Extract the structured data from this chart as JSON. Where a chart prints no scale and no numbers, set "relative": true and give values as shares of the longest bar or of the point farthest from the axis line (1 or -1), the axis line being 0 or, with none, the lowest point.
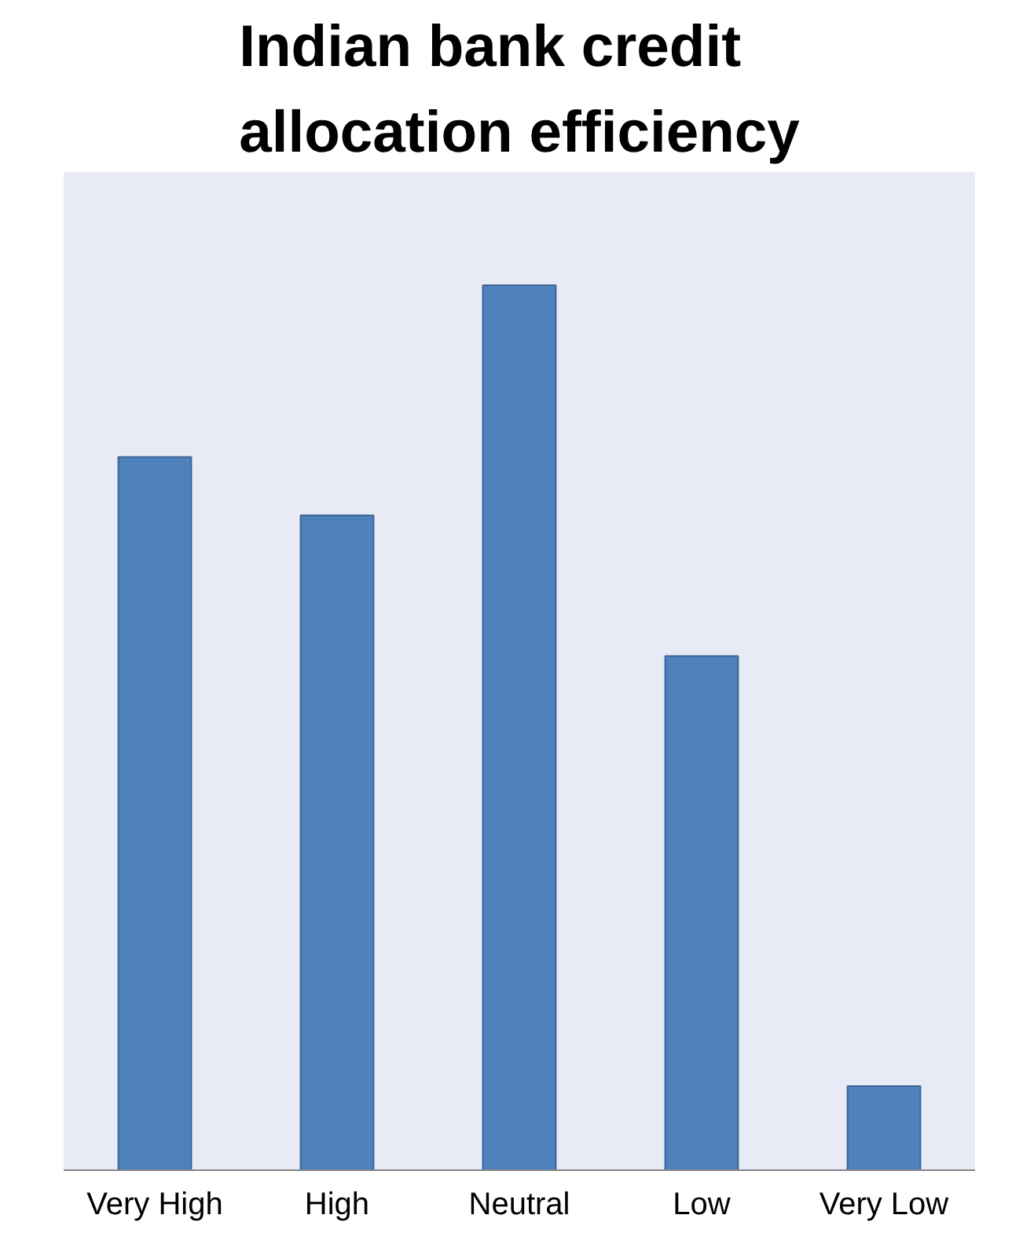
{
  "chart_data": {
    "type": "bar",
    "title": "Indian bank credit allocation efficiency",
    "categories": [
      "Very High",
      "High",
      "Neutral",
      "Low",
      "Very Low"
    ],
    "values": [
      0.806,
      0.74,
      1,
      0.581,
      0.095
    ],
    "color": "#4f81bd",
    "relative": true
  }
}
